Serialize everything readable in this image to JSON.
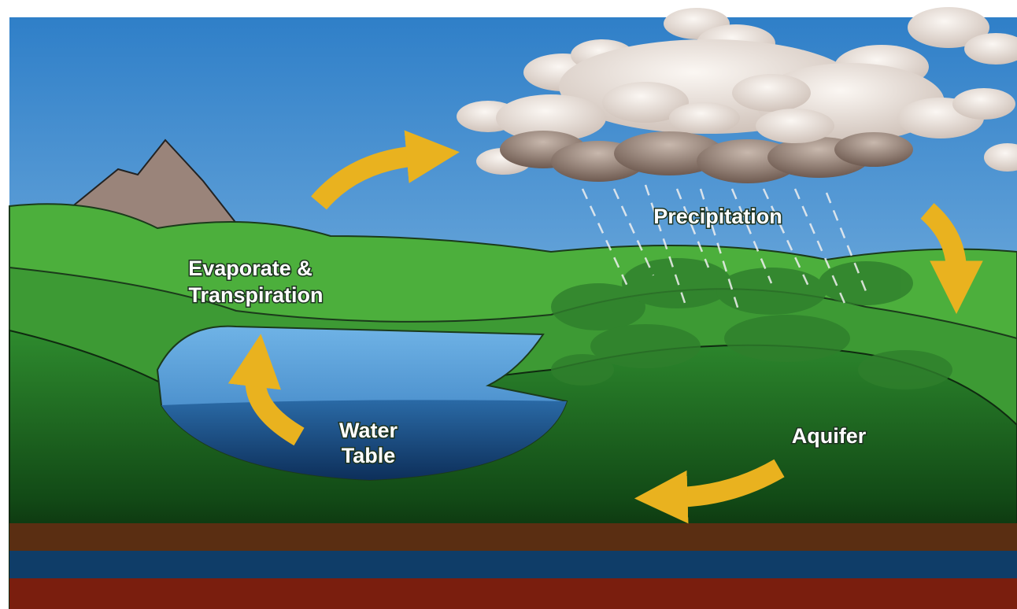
{
  "labels": [
    {
      "name": "precipitation",
      "lines": [
        "Precipitation"
      ]
    },
    {
      "name": "evaporation",
      "lines": [
        "Evaporate &",
        "Transpiration"
      ]
    },
    {
      "name": "water-table",
      "lines": [
        "Water",
        "Table"
      ]
    },
    {
      "name": "aquifer",
      "lines": [
        "Aquifer"
      ]
    }
  ]
}
